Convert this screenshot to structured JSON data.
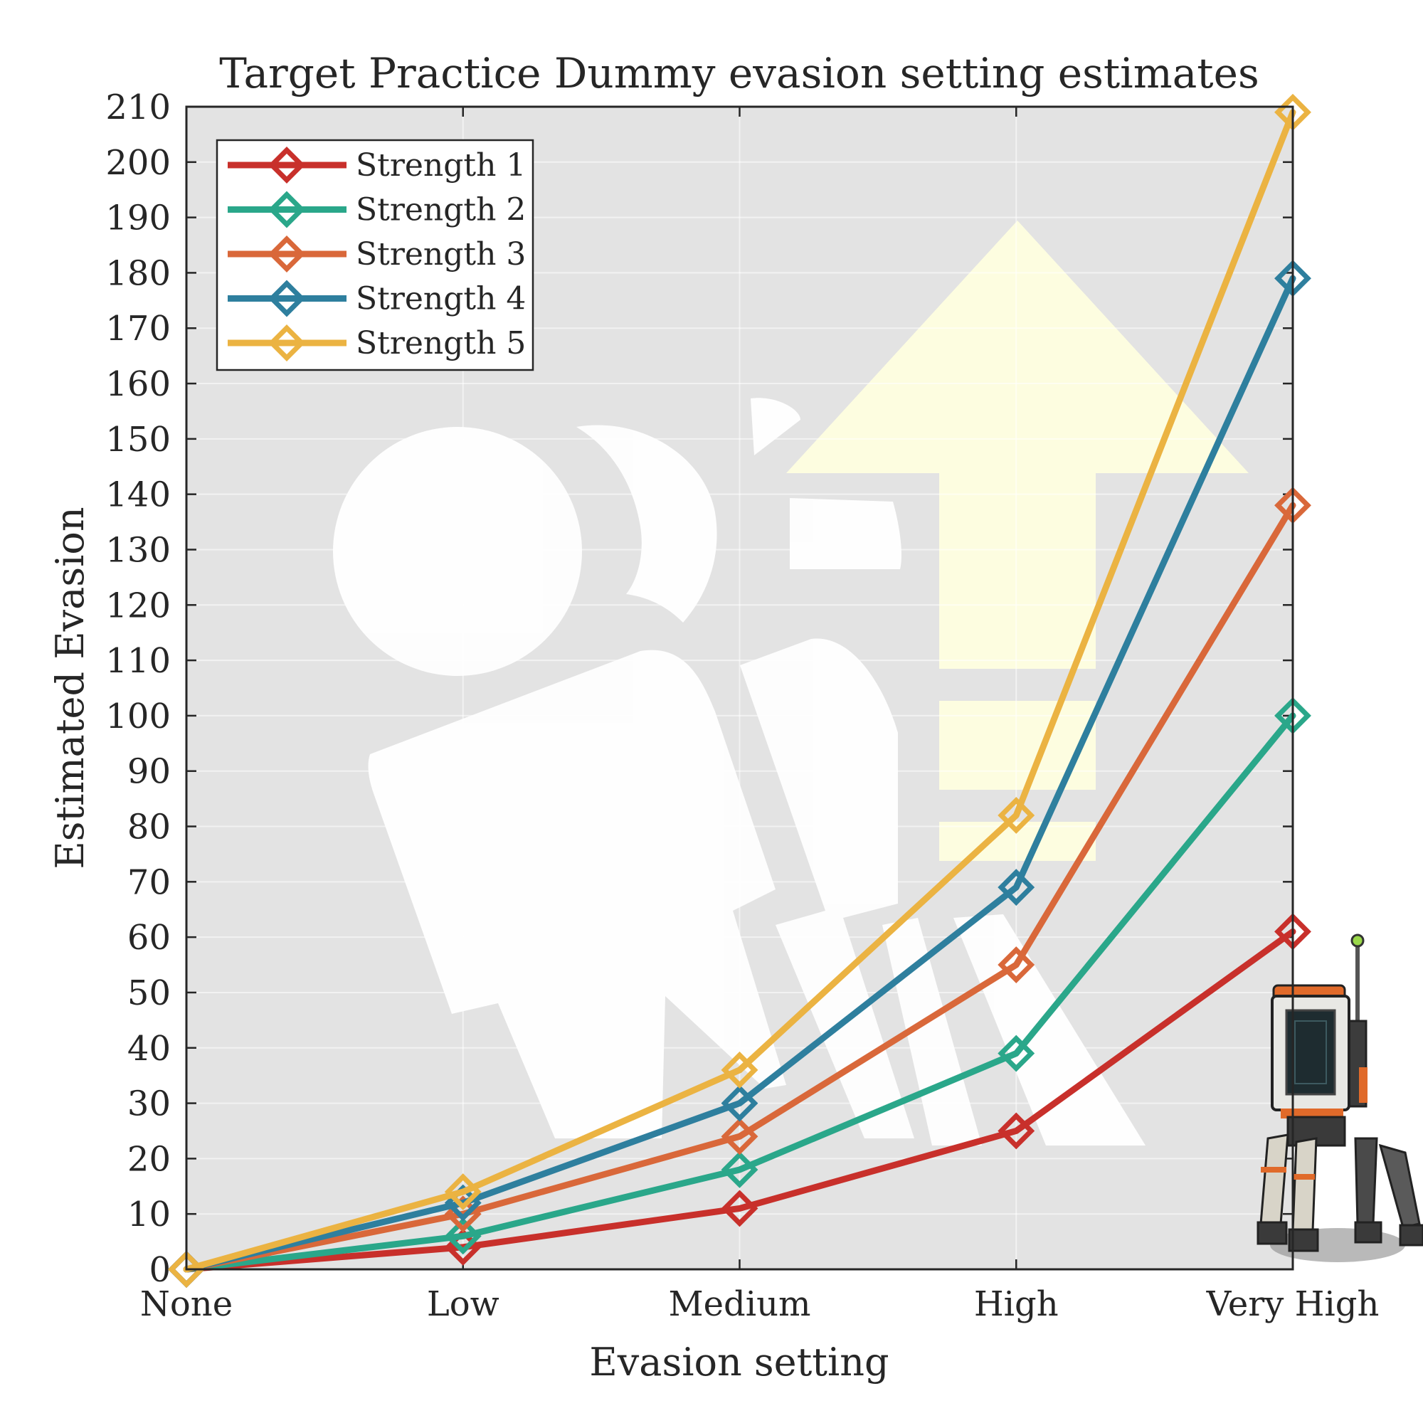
{
  "chart_data": {
    "type": "line",
    "title": "Target Practice Dummy evasion setting estimates",
    "xlabel": "Evasion setting",
    "ylabel": "Estimated Evasion",
    "categories": [
      "None",
      "Low",
      "Medium",
      "High",
      "Very High"
    ],
    "ylim": [
      0,
      210
    ],
    "yticks": [
      0,
      10,
      20,
      30,
      40,
      50,
      60,
      70,
      80,
      90,
      100,
      110,
      120,
      130,
      140,
      150,
      160,
      170,
      180,
      190,
      200,
      210
    ],
    "grid": true,
    "legend_position": "top-left",
    "marker": "diamond",
    "series": [
      {
        "name": "Strength 1",
        "color": "#c8302b",
        "values": [
          0,
          4,
          11,
          25,
          61
        ]
      },
      {
        "name": "Strength 2",
        "color": "#2aa78a",
        "values": [
          0,
          6,
          18,
          39,
          100
        ]
      },
      {
        "name": "Strength 3",
        "color": "#d9683a",
        "values": [
          0,
          10,
          24,
          55,
          138
        ]
      },
      {
        "name": "Strength 4",
        "color": "#2e7f9e",
        "values": [
          0,
          12,
          30,
          69,
          179
        ]
      },
      {
        "name": "Strength 5",
        "color": "#ebb342",
        "values": [
          0,
          14,
          36,
          82,
          209
        ]
      }
    ]
  }
}
